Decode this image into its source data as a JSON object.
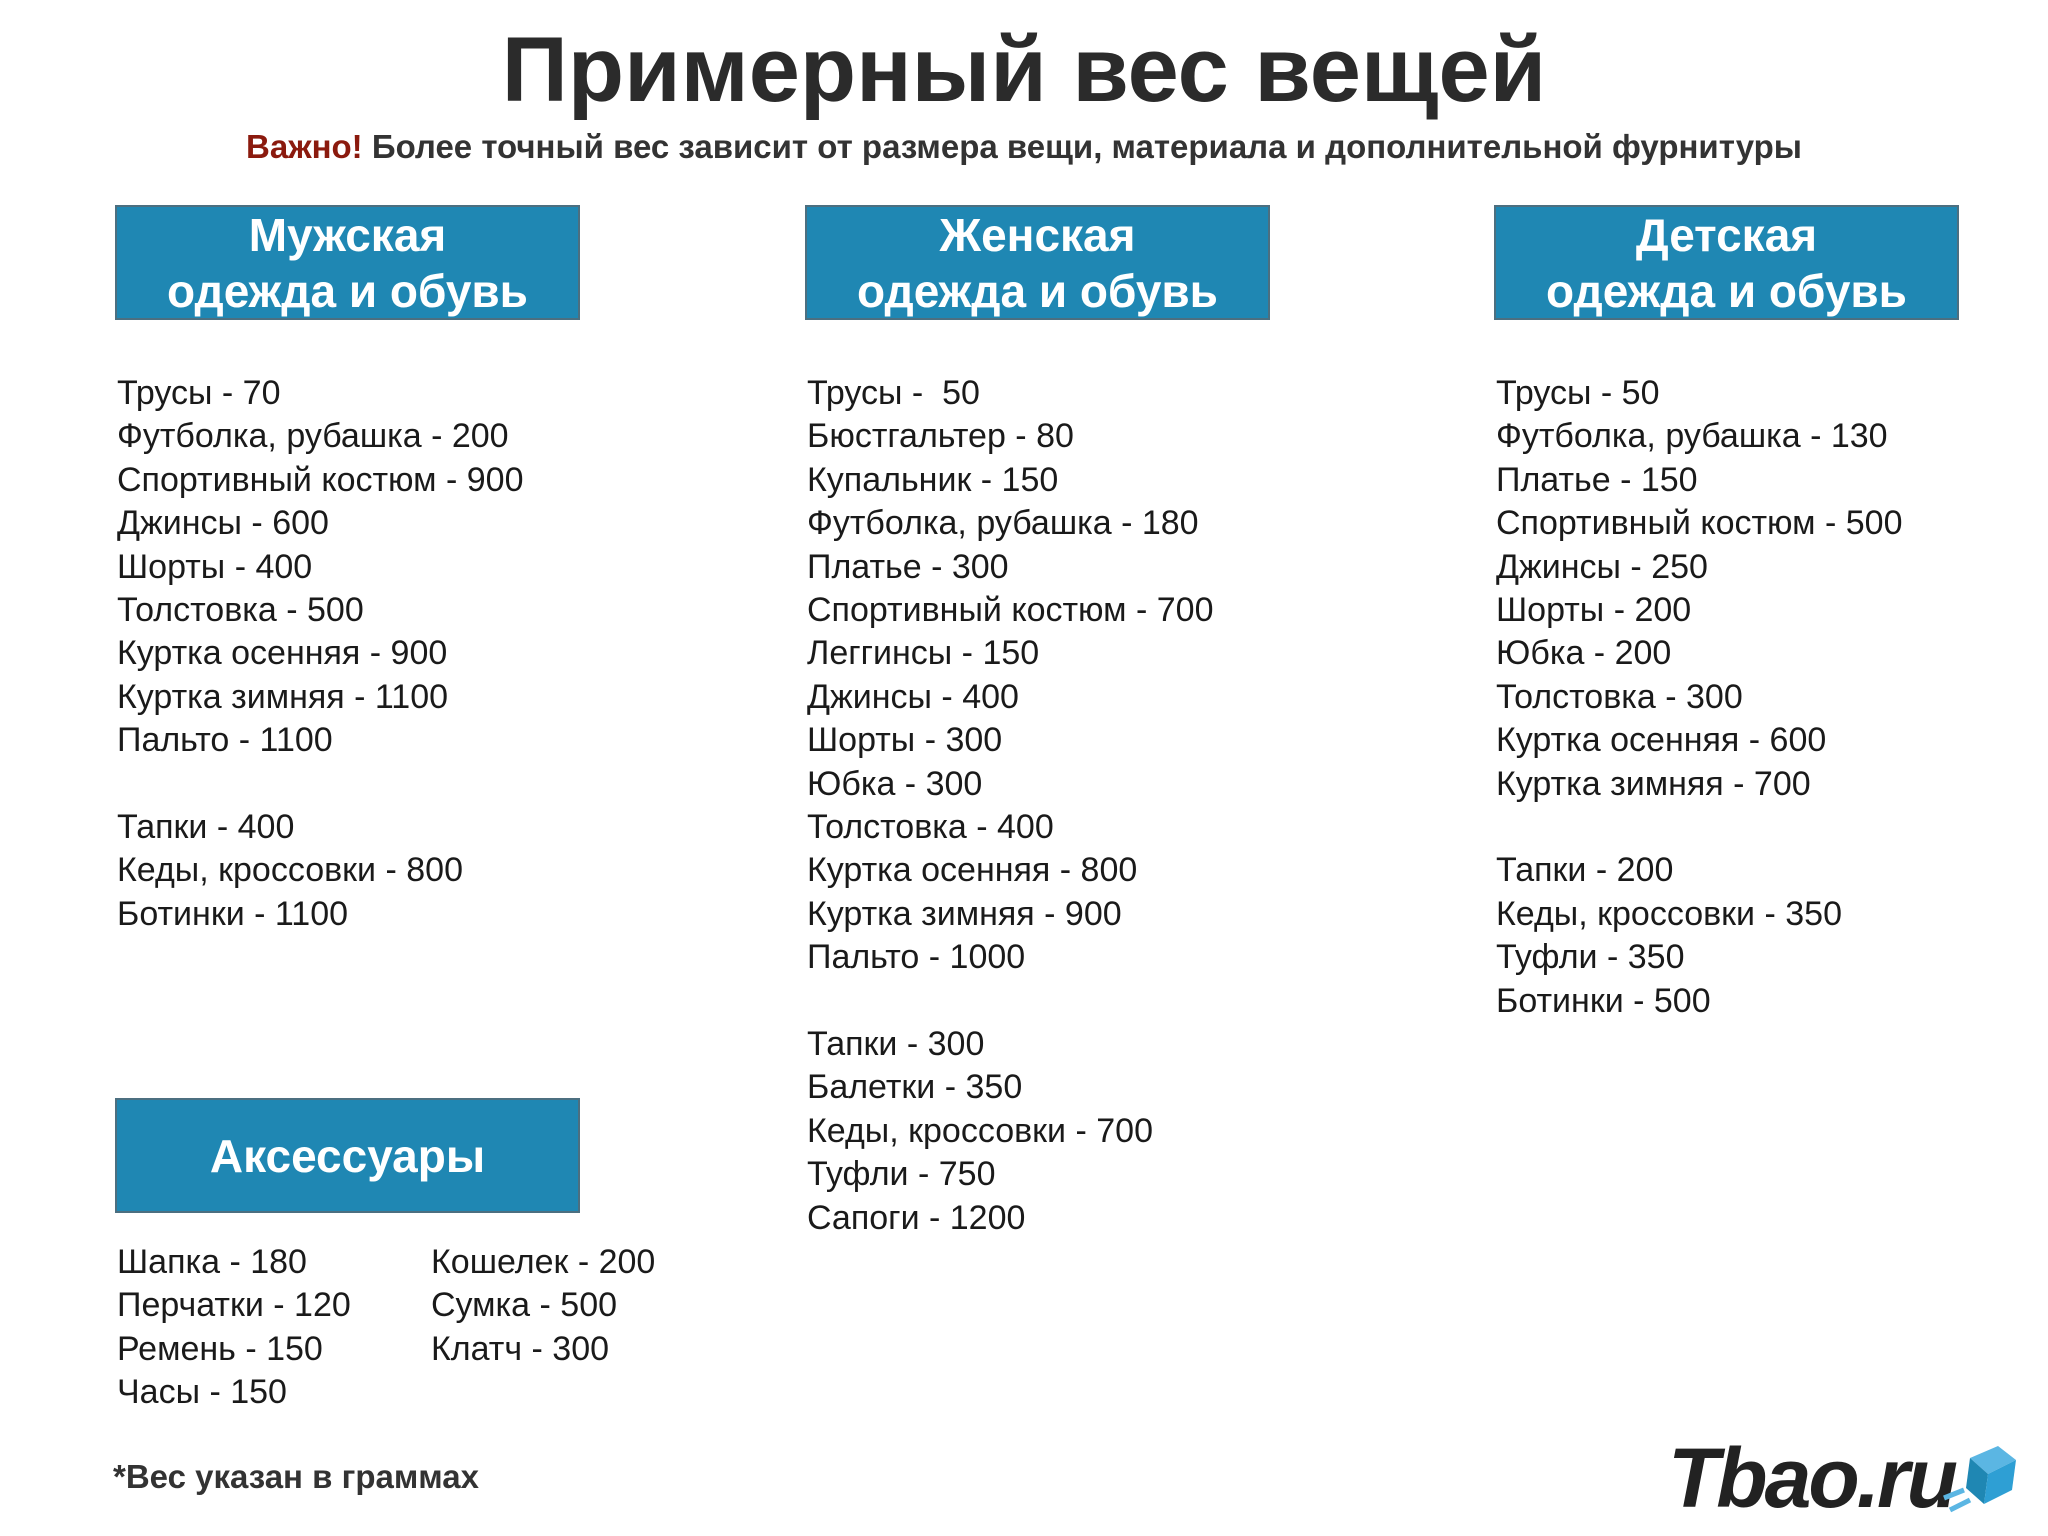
{
  "header": {
    "title": "Примерный вес вещей",
    "note_label": "Важно!",
    "note_text": "Более точный вес зависит от размера вещи, материала и дополнительной фурнитуры"
  },
  "sections": [
    {
      "title": [
        "Мужская",
        "одежда и обувь"
      ],
      "groups": [
        [
          "Трусы - 70",
          "Футболка, рубашка - 200",
          "Спортивный костюм - 900",
          "Джинсы - 600",
          "Шорты - 400",
          "Толстовка - 500",
          "Куртка осенняя - 900",
          "Куртка зимняя - 1100",
          "Пальто - 1100"
        ],
        [
          "Тапки - 400",
          "Кеды, кроссовки - 800",
          "Ботинки - 1100"
        ]
      ]
    },
    {
      "title": [
        "Женская",
        "одежда и обувь"
      ],
      "groups": [
        [
          "Трусы -  50",
          "Бюстгальтер - 80",
          "Купальник - 150",
          "Футболка, рубашка - 180",
          "Платье - 300",
          "Спортивный костюм - 700",
          "Леггинсы - 150",
          "Джинсы - 400",
          "Шорты - 300",
          "Юбка - 300",
          "Толстовка - 400",
          "Куртка осенняя - 800",
          "Куртка зимняя - 900",
          "Пальто - 1000"
        ],
        [
          "Тапки - 300",
          "Балетки - 350",
          "Кеды, кроссовки - 700",
          "Туфли - 750",
          "Сапоги - 1200"
        ]
      ]
    },
    {
      "title": [
        "Детская",
        "одежда и обувь"
      ],
      "groups": [
        [
          "Трусы - 50",
          "Футболка, рубашка - 130",
          "Платье - 150",
          "Спортивный костюм - 500",
          "Джинсы - 250",
          "Шорты - 200",
          "Юбка - 200",
          "Толстовка - 300",
          "Куртка осенняя - 600",
          "Куртка зимняя - 700"
        ],
        [
          "Тапки - 200",
          "Кеды, кроссовки - 350",
          "Туфли - 350",
          "Ботинки - 500"
        ]
      ]
    }
  ],
  "accessories": {
    "title": "Аксессуары",
    "columns": [
      [
        "Шапка - 180",
        "Перчатки - 120",
        "Ремень - 150",
        "Часы - 150"
      ],
      [
        "Кошелек - 200",
        "Сумка - 500",
        "Клатч - 300"
      ]
    ]
  },
  "footnote": "*Вес указан в граммах",
  "logo": "Tbao.ru"
}
